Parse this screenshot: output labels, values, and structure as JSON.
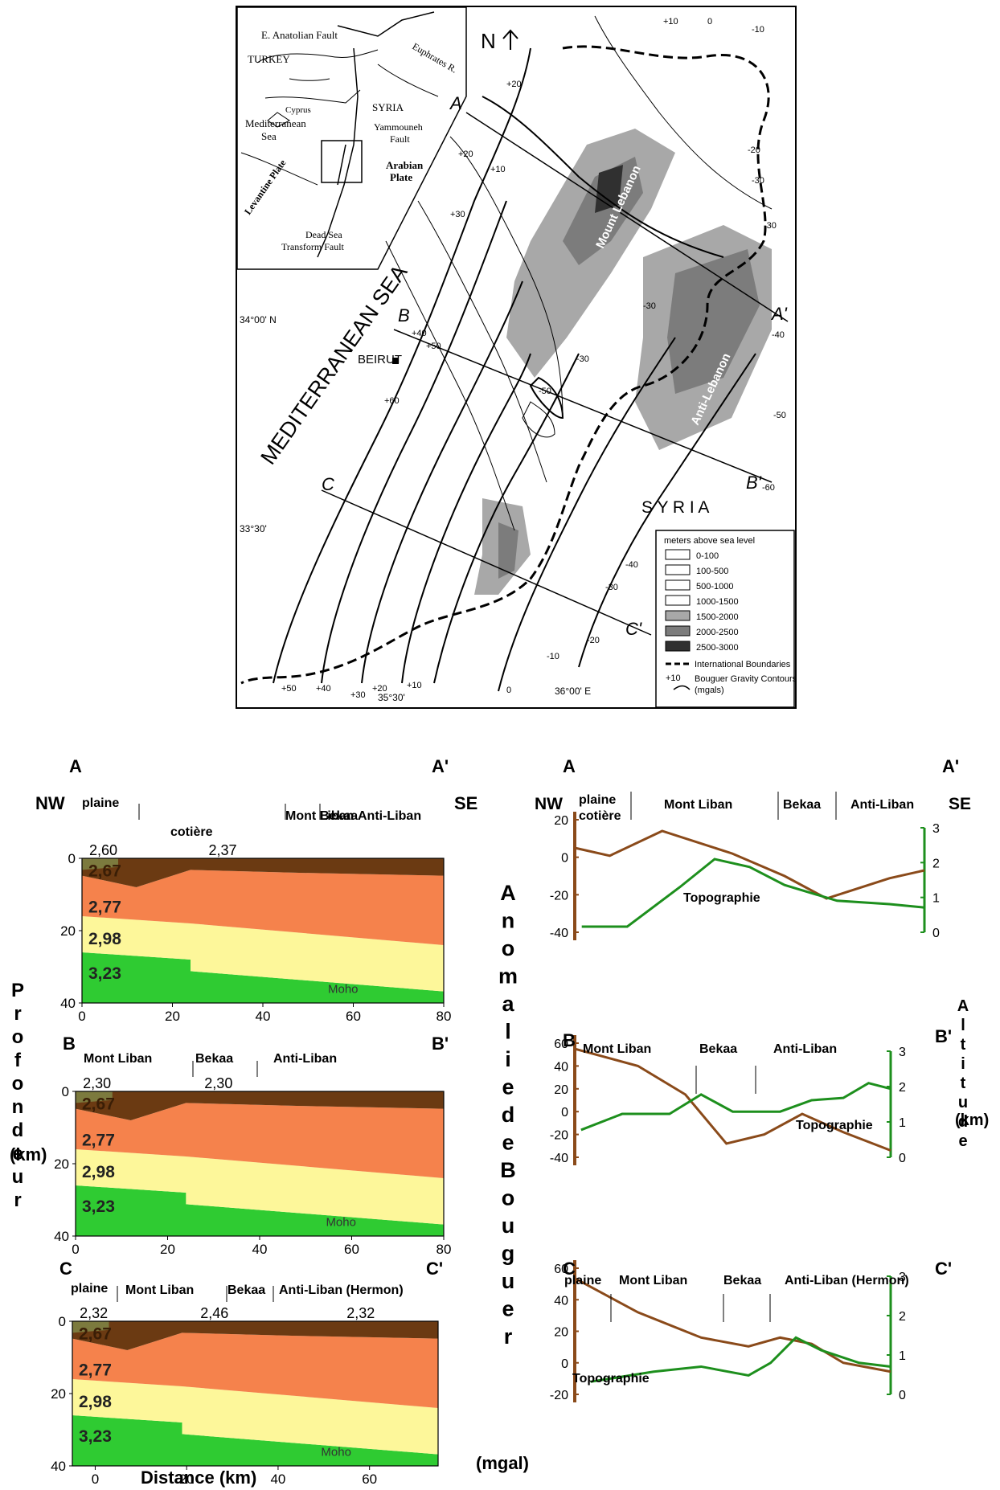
{
  "map": {
    "north": "N",
    "inset": {
      "labels": [
        "E. Anatolian Fault",
        "TURKEY",
        "Euphrates R.",
        "SYRIA",
        "Cyprus",
        "Mediterranean",
        "Sea",
        "Yammouneh",
        "Fault",
        "Arabian",
        "Plate",
        "Levantine Plate",
        "Dead Sea",
        "Transform Fault"
      ]
    },
    "sea_label": "MEDITERRANEAN SEA",
    "city": "BEIRUT",
    "country": "S Y R I A",
    "ranges": [
      "Mount Lebanon",
      "Anti-Lebanon"
    ],
    "lat_labels": [
      "34°00' N",
      "33°30'"
    ],
    "lon_labels": [
      "35°30'",
      "36°00' E"
    ],
    "profiles": [
      "A",
      "A'",
      "B",
      "B'",
      "C",
      "C'"
    ],
    "contour_values": [
      "+10",
      "0",
      "-10",
      "+20",
      "-20",
      "+20",
      "-30",
      "-30",
      "+30",
      "+10",
      "-30",
      "-40",
      "+40",
      "+50",
      "-30",
      "+60",
      "-50",
      "-50",
      "-60",
      "-40",
      "-30",
      "-20",
      "-10",
      "0",
      "+50",
      "+40",
      "+30",
      "+20",
      "+10"
    ],
    "legend": {
      "title": "meters above sea level",
      "items": [
        "0-100",
        "100-500",
        "500-1000",
        "1000-1500",
        "1500-2000",
        "2000-2500",
        "2500-3000"
      ],
      "colors": [
        "#ffffff",
        "#ffffff",
        "#ffffff",
        "#ffffff",
        "#a8a8a8",
        "#7c7c7c",
        "#303030"
      ],
      "boundary": "International Boundaries",
      "contour_val": "+10",
      "contour": "Bouguer Gravity Contours",
      "contour_unit": "(mgals)"
    }
  },
  "sections": {
    "ylabel": "Profondeur",
    "yunit": "(km)",
    "xlabel": "Distance (km)",
    "panels": [
      {
        "start": "A",
        "end": "A'",
        "left_dir": "NW",
        "right_dir": "SE",
        "regions": [
          "plaine",
          "cotière",
          "Mont Liban",
          "Bekaa",
          "Anti-Liban"
        ],
        "densities": [
          "2,60",
          "2,37",
          "2,67",
          "2,77",
          "2,98",
          "3,23"
        ],
        "moho": "Moho",
        "xticks": [
          "0",
          "20",
          "40",
          "60",
          "80"
        ],
        "yticks": [
          "0",
          "20",
          "40"
        ]
      },
      {
        "start": "B",
        "end": "B'",
        "regions": [
          "Mont Liban",
          "Bekaa",
          "Anti-Liban"
        ],
        "densities": [
          "2,30",
          "2,30",
          "2,67",
          "2,77",
          "2,98",
          "3,23"
        ],
        "moho": "Moho",
        "xticks": [
          "0",
          "20",
          "40",
          "60",
          "80"
        ],
        "yticks": [
          "0",
          "20",
          "40"
        ]
      },
      {
        "start": "C",
        "end": "C'",
        "regions": [
          "plaine",
          "Mont Liban",
          "Bekaa",
          "Anti-Liban (Hermon)"
        ],
        "densities": [
          "2,32",
          "2,46",
          "2,32",
          "2,67",
          "2,77",
          "2,98",
          "3,23"
        ],
        "moho": "Moho",
        "xticks": [
          "0",
          "20",
          "40",
          "60"
        ],
        "yticks": [
          "0",
          "20",
          "40"
        ]
      }
    ]
  },
  "profiles": {
    "left_axis_label": "Anomalie de Bouguer",
    "left_unit": "(mgal)",
    "right_axis_label": "Altitude",
    "right_unit": "(km)",
    "curve_label": "Topographie",
    "panels": [
      {
        "start": "A",
        "end": "A'",
        "left_dir": "NW",
        "right_dir": "SE",
        "regions": [
          "plaine",
          "cotière",
          "Mont Liban",
          "Bekaa",
          "Anti-Liban"
        ],
        "yticks": [
          "20",
          "0",
          "-20",
          "-40"
        ],
        "alt_ticks": [
          "3",
          "2",
          "1",
          "0"
        ]
      },
      {
        "start": "B",
        "end": "B'",
        "regions": [
          "Mont Liban",
          "Bekaa",
          "Anti-Liban"
        ],
        "yticks": [
          "60",
          "40",
          "20",
          "0",
          "-20",
          "-40"
        ],
        "alt_ticks": [
          "3",
          "2",
          "1",
          "0"
        ]
      },
      {
        "start": "C",
        "end": "C'",
        "regions": [
          "plaine",
          "Mont Liban",
          "Bekaa",
          "Anti-Liban (Hermon)"
        ],
        "yticks": [
          "60",
          "40",
          "20",
          "0",
          "-20"
        ],
        "alt_ticks": [
          "3",
          "2",
          "1",
          "0"
        ]
      }
    ]
  },
  "colors": {
    "dark": "#6b3a12",
    "orange": "#f5824c",
    "yellow": "#fdf79a",
    "green": "#2fcb32",
    "olive": "#7c7a3e",
    "bouguer": "#8a4a1a",
    "topo": "#1d8f1d"
  }
}
